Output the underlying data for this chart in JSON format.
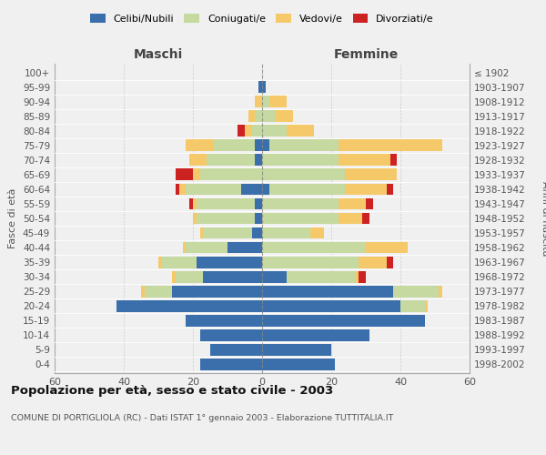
{
  "age_groups": [
    "0-4",
    "5-9",
    "10-14",
    "15-19",
    "20-24",
    "25-29",
    "30-34",
    "35-39",
    "40-44",
    "45-49",
    "50-54",
    "55-59",
    "60-64",
    "65-69",
    "70-74",
    "75-79",
    "80-84",
    "85-89",
    "90-94",
    "95-99",
    "100+"
  ],
  "birth_years": [
    "1998-2002",
    "1993-1997",
    "1988-1992",
    "1983-1987",
    "1978-1982",
    "1973-1977",
    "1968-1972",
    "1963-1967",
    "1958-1962",
    "1953-1957",
    "1948-1952",
    "1943-1947",
    "1938-1942",
    "1933-1937",
    "1928-1932",
    "1923-1927",
    "1918-1922",
    "1913-1917",
    "1908-1912",
    "1903-1907",
    "≤ 1902"
  ],
  "males": {
    "celibi": [
      18,
      15,
      18,
      22,
      42,
      26,
      17,
      19,
      10,
      3,
      2,
      2,
      6,
      0,
      2,
      2,
      0,
      0,
      0,
      1,
      0
    ],
    "coniugati": [
      0,
      0,
      0,
      0,
      0,
      8,
      8,
      10,
      12,
      14,
      17,
      17,
      16,
      18,
      14,
      12,
      3,
      2,
      0,
      0,
      0
    ],
    "vedovi": [
      0,
      0,
      0,
      0,
      0,
      1,
      1,
      1,
      1,
      1,
      1,
      1,
      2,
      2,
      5,
      8,
      2,
      2,
      2,
      0,
      0
    ],
    "divorziati": [
      0,
      0,
      0,
      0,
      0,
      0,
      0,
      0,
      0,
      0,
      0,
      1,
      1,
      5,
      0,
      0,
      2,
      0,
      0,
      0,
      0
    ]
  },
  "females": {
    "nubili": [
      21,
      20,
      31,
      47,
      40,
      38,
      7,
      0,
      0,
      0,
      0,
      0,
      2,
      0,
      0,
      2,
      0,
      0,
      0,
      1,
      0
    ],
    "coniugate": [
      0,
      0,
      0,
      0,
      7,
      13,
      20,
      28,
      30,
      14,
      22,
      22,
      22,
      24,
      22,
      20,
      7,
      4,
      2,
      0,
      0
    ],
    "vedove": [
      0,
      0,
      0,
      0,
      1,
      1,
      1,
      8,
      12,
      4,
      7,
      8,
      12,
      15,
      15,
      30,
      8,
      5,
      5,
      0,
      0
    ],
    "divorziate": [
      0,
      0,
      0,
      0,
      0,
      0,
      2,
      2,
      0,
      0,
      2,
      2,
      2,
      0,
      2,
      0,
      0,
      0,
      0,
      0,
      0
    ]
  },
  "colors": {
    "celibi": "#3a6fac",
    "coniugati": "#c5d9a0",
    "vedovi": "#f5c96a",
    "divorziati": "#cc2222"
  },
  "title": "Popolazione per età, sesso e stato civile - 2003",
  "subtitle": "COMUNE DI PORTIGLIOLA (RC) - Dati ISTAT 1° gennaio 2003 - Elaborazione TUTTITALIA.IT",
  "xlabel_left": "Maschi",
  "xlabel_right": "Femmine",
  "ylabel_left": "Fasce di età",
  "ylabel_right": "Anni di nascita",
  "xlim": 60,
  "bg_color": "#f0f0f0",
  "legend_labels": [
    "Celibi/Nubili",
    "Coniugati/e",
    "Vedovi/e",
    "Divorziati/e"
  ]
}
